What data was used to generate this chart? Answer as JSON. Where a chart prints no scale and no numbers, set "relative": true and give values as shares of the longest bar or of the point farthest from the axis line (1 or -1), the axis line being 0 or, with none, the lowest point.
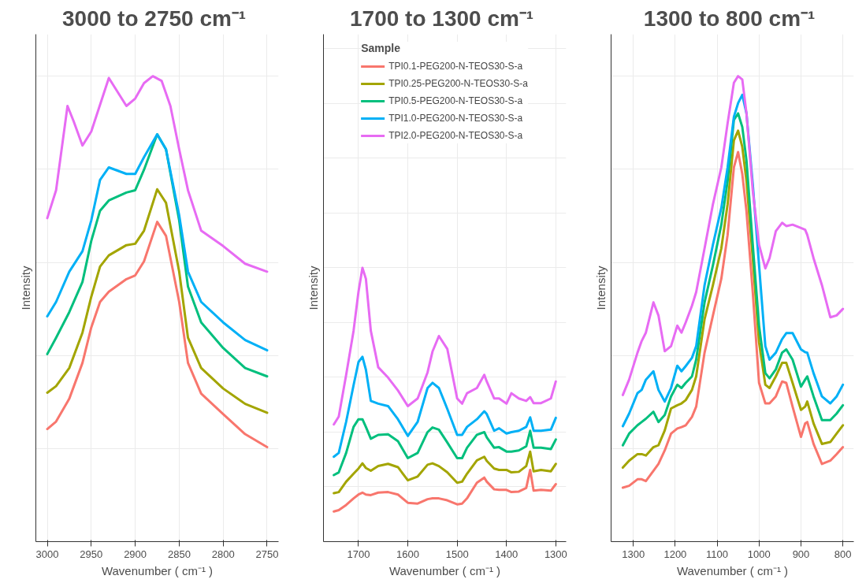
{
  "chart_data": [
    {
      "type": "line",
      "title": "3000 to 2750  cm⁻¹",
      "xlabel": "Wavenumber ( cm⁻¹ )",
      "ylabel": "Intensity",
      "relative": true,
      "xlim": [
        3013,
        2737
      ],
      "xticks": [
        3000,
        2950,
        2900,
        2850,
        2800,
        2750
      ],
      "grid": true,
      "legend": false,
      "series": [
        {
          "color": "#f8766d",
          "x": [
            3000,
            2990,
            2975,
            2960,
            2950,
            2940,
            2930,
            2910,
            2900,
            2890,
            2875,
            2865,
            2850,
            2840,
            2825,
            2800,
            2775,
            2750
          ],
          "values": [
            0.242,
            0.258,
            0.307,
            0.384,
            0.46,
            0.515,
            0.537,
            0.564,
            0.572,
            0.602,
            0.687,
            0.657,
            0.515,
            0.384,
            0.318,
            0.274,
            0.231,
            0.203
          ]
        },
        {
          "color": "#a3a500",
          "x": [
            3000,
            2990,
            2975,
            2960,
            2950,
            2940,
            2930,
            2910,
            2900,
            2890,
            2875,
            2865,
            2850,
            2840,
            2825,
            2800,
            2775,
            2750
          ],
          "values": [
            0.32,
            0.334,
            0.373,
            0.449,
            0.526,
            0.591,
            0.615,
            0.637,
            0.64,
            0.668,
            0.757,
            0.728,
            0.58,
            0.438,
            0.373,
            0.329,
            0.296,
            0.277
          ]
        },
        {
          "color": "#00bf7d",
          "x": [
            3000,
            2990,
            2975,
            2960,
            2950,
            2940,
            2930,
            2910,
            2900,
            2890,
            2875,
            2865,
            2850,
            2840,
            2825,
            2800,
            2775,
            2750
          ],
          "values": [
            0.403,
            0.438,
            0.493,
            0.558,
            0.646,
            0.711,
            0.733,
            0.75,
            0.755,
            0.799,
            0.875,
            0.843,
            0.69,
            0.548,
            0.471,
            0.416,
            0.373,
            0.355
          ]
        },
        {
          "color": "#00b0f6",
          "x": [
            3000,
            2990,
            2975,
            2960,
            2950,
            2940,
            2930,
            2910,
            2900,
            2890,
            2875,
            2865,
            2850,
            2840,
            2825,
            2800,
            2775,
            2750
          ],
          "values": [
            0.484,
            0.515,
            0.58,
            0.624,
            0.69,
            0.777,
            0.804,
            0.79,
            0.79,
            0.826,
            0.875,
            0.843,
            0.701,
            0.58,
            0.515,
            0.471,
            0.433,
            0.411
          ]
        },
        {
          "color": "#e76bf3",
          "x": [
            3000,
            2990,
            2977,
            2970,
            2960,
            2950,
            2930,
            2910,
            2900,
            2890,
            2880,
            2870,
            2860,
            2850,
            2840,
            2825,
            2800,
            2775,
            2750
          ],
          "values": [
            0.695,
            0.755,
            0.936,
            0.903,
            0.851,
            0.881,
            0.996,
            0.936,
            0.952,
            0.985,
            1.0,
            0.99,
            0.936,
            0.843,
            0.755,
            0.668,
            0.635,
            0.597,
            0.58
          ]
        }
      ]
    },
    {
      "type": "line",
      "title": "1700 to 1300  cm⁻¹",
      "xlabel": "Wavenumber ( cm⁻¹ )",
      "ylabel": "Intensity",
      "relative": true,
      "xlim": [
        1771,
        1279
      ],
      "xticks": [
        1700,
        1600,
        1500,
        1400,
        1300
      ],
      "grid": true,
      "legend": "top",
      "legend_title": "Sample",
      "x": [
        1750,
        1740,
        1725,
        1710,
        1700,
        1692,
        1685,
        1675,
        1660,
        1640,
        1620,
        1600,
        1580,
        1560,
        1550,
        1537,
        1520,
        1500,
        1490,
        1480,
        1460,
        1445,
        1440,
        1425,
        1415,
        1400,
        1390,
        1375,
        1360,
        1352,
        1345,
        1330,
        1310,
        1300
      ],
      "series": [
        {
          "name": "TPI0.1-PEG200-N-TEOS30-S-a",
          "color": "#f8766d",
          "values": [
            0.11,
            0.115,
            0.134,
            0.158,
            0.172,
            0.179,
            0.172,
            0.17,
            0.179,
            0.181,
            0.172,
            0.142,
            0.139,
            0.155,
            0.158,
            0.158,
            0.151,
            0.136,
            0.139,
            0.158,
            0.215,
            0.234,
            0.219,
            0.191,
            0.189,
            0.189,
            0.181,
            0.183,
            0.196,
            0.262,
            0.186,
            0.189,
            0.186,
            0.21
          ]
        },
        {
          "name": "TPI0.25-PEG200-N-TEOS30-S-a",
          "color": "#a3a500",
          "values": [
            0.177,
            0.181,
            0.219,
            0.248,
            0.267,
            0.286,
            0.269,
            0.259,
            0.276,
            0.284,
            0.272,
            0.224,
            0.238,
            0.281,
            0.286,
            0.276,
            0.253,
            0.215,
            0.219,
            0.248,
            0.297,
            0.31,
            0.295,
            0.267,
            0.262,
            0.262,
            0.253,
            0.255,
            0.276,
            0.329,
            0.257,
            0.262,
            0.257,
            0.284
          ]
        },
        {
          "name": "TPI0.5-PEG200-N-TEOS30-S-a",
          "color": "#00bf7d",
          "values": [
            0.243,
            0.253,
            0.324,
            0.419,
            0.447,
            0.447,
            0.419,
            0.376,
            0.39,
            0.392,
            0.367,
            0.305,
            0.324,
            0.4,
            0.417,
            0.409,
            0.362,
            0.305,
            0.305,
            0.343,
            0.39,
            0.4,
            0.381,
            0.343,
            0.345,
            0.329,
            0.329,
            0.333,
            0.348,
            0.405,
            0.343,
            0.343,
            0.338,
            0.373
          ]
        },
        {
          "name": "TPI1.0-PEG200-N-TEOS30-S-a",
          "color": "#00b0f6",
          "values": [
            0.31,
            0.324,
            0.438,
            0.571,
            0.656,
            0.675,
            0.628,
            0.514,
            0.504,
            0.495,
            0.447,
            0.386,
            0.438,
            0.561,
            0.58,
            0.561,
            0.485,
            0.39,
            0.39,
            0.419,
            0.447,
            0.476,
            0.466,
            0.405,
            0.414,
            0.395,
            0.4,
            0.405,
            0.419,
            0.454,
            0.405,
            0.405,
            0.409,
            0.452
          ]
        },
        {
          "name": "TPI2.0-PEG200-N-TEOS30-S-a",
          "color": "#e76bf3",
          "values": [
            0.428,
            0.457,
            0.609,
            0.77,
            0.913,
            1,
            0.96,
            0.77,
            0.637,
            0.599,
            0.552,
            0.495,
            0.523,
            0.618,
            0.694,
            0.751,
            0.704,
            0.523,
            0.504,
            0.542,
            0.561,
            0.609,
            0.585,
            0.523,
            0.523,
            0.504,
            0.542,
            0.523,
            0.514,
            0.528,
            0.506,
            0.506,
            0.523,
            0.585
          ]
        }
      ]
    },
    {
      "type": "line",
      "title": "1300 to 800  cm⁻¹",
      "xlabel": "Wavenumber ( cm⁻¹ )",
      "ylabel": "Intensity",
      "relative": true,
      "xlim": [
        1353,
        774
      ],
      "xticks": [
        1300,
        1200,
        1100,
        1000,
        900,
        800
      ],
      "grid": true,
      "legend": false,
      "x": [
        1325,
        1310,
        1290,
        1280,
        1270,
        1252,
        1240,
        1225,
        1210,
        1195,
        1185,
        1175,
        1160,
        1150,
        1130,
        1110,
        1090,
        1075,
        1060,
        1050,
        1040,
        1030,
        1015,
        1000,
        985,
        975,
        960,
        945,
        935,
        920,
        900,
        890,
        885,
        870,
        850,
        830,
        815,
        800
      ],
      "series": [
        {
          "color": "#f8766d",
          "values": [
            0.116,
            0.12,
            0.134,
            0.134,
            0.13,
            0.152,
            0.167,
            0.196,
            0.232,
            0.243,
            0.246,
            0.25,
            0.268,
            0.29,
            0.406,
            0.486,
            0.565,
            0.659,
            0.804,
            0.837,
            0.79,
            0.71,
            0.536,
            0.341,
            0.297,
            0.297,
            0.312,
            0.344,
            0.341,
            0.29,
            0.225,
            0.254,
            0.257,
            0.21,
            0.167,
            0.174,
            0.188,
            0.203
          ]
        },
        {
          "color": "#a3a500",
          "values": [
            0.159,
            0.174,
            0.188,
            0.188,
            0.185,
            0.203,
            0.207,
            0.239,
            0.286,
            0.293,
            0.297,
            0.304,
            0.326,
            0.355,
            0.478,
            0.551,
            0.63,
            0.725,
            0.862,
            0.883,
            0.848,
            0.775,
            0.609,
            0.428,
            0.337,
            0.33,
            0.355,
            0.384,
            0.384,
            0.341,
            0.283,
            0.29,
            0.301,
            0.254,
            0.21,
            0.214,
            0.232,
            0.25
          ]
        },
        {
          "color": "#00bf7d",
          "values": [
            0.207,
            0.232,
            0.25,
            0.257,
            0.264,
            0.279,
            0.257,
            0.272,
            0.312,
            0.337,
            0.33,
            0.341,
            0.355,
            0.391,
            0.514,
            0.594,
            0.681,
            0.775,
            0.906,
            0.92,
            0.891,
            0.819,
            0.638,
            0.464,
            0.362,
            0.351,
            0.37,
            0.406,
            0.413,
            0.391,
            0.333,
            0.348,
            0.355,
            0.312,
            0.261,
            0.261,
            0.275,
            0.293
          ]
        },
        {
          "color": "#00b0f6",
          "values": [
            0.248,
            0.275,
            0.319,
            0.326,
            0.348,
            0.366,
            0.326,
            0.301,
            0.33,
            0.378,
            0.366,
            0.377,
            0.395,
            0.42,
            0.551,
            0.638,
            0.717,
            0.804,
            0.913,
            0.942,
            0.96,
            0.92,
            0.768,
            0.594,
            0.42,
            0.391,
            0.406,
            0.435,
            0.448,
            0.448,
            0.413,
            0.407,
            0.406,
            0.362,
            0.312,
            0.297,
            0.312,
            0.337
          ]
        },
        {
          "color": "#e76bf3",
          "values": [
            0.315,
            0.348,
            0.406,
            0.431,
            0.449,
            0.514,
            0.486,
            0.409,
            0.42,
            0.464,
            0.449,
            0.471,
            0.507,
            0.536,
            0.63,
            0.725,
            0.804,
            0.899,
            0.986,
            1,
            0.993,
            0.92,
            0.754,
            0.638,
            0.587,
            0.609,
            0.667,
            0.685,
            0.678,
            0.681,
            0.674,
            0.67,
            0.659,
            0.609,
            0.551,
            0.482,
            0.486,
            0.5
          ]
        }
      ]
    }
  ]
}
